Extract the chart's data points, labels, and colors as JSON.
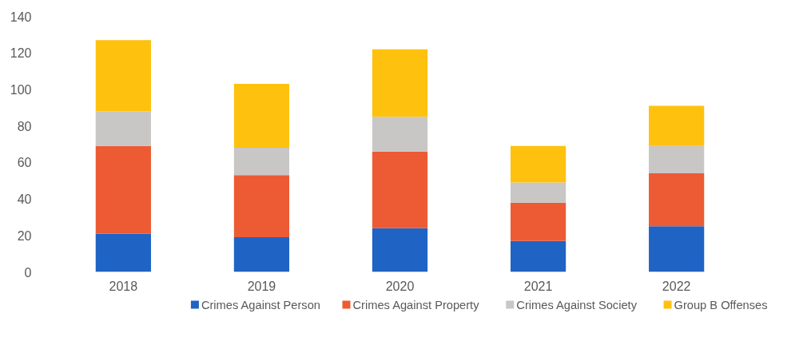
{
  "chart_data": {
    "type": "bar",
    "stacked": true,
    "categories": [
      "2018",
      "2019",
      "2020",
      "2021",
      "2022"
    ],
    "series": [
      {
        "name": "Crimes Against Person",
        "color": "#1f63c4",
        "values": [
          21,
          19,
          24,
          17,
          25
        ]
      },
      {
        "name": "Crimes Against Property",
        "color": "#ec5b33",
        "values": [
          48,
          34,
          42,
          21,
          29
        ]
      },
      {
        "name": "Crimes Against Society",
        "color": "#c9c6c6",
        "values": [
          19,
          15,
          19,
          11,
          15
        ]
      },
      {
        "name": "Group B Offenses",
        "color": "#fec10d",
        "values": [
          39,
          35,
          37,
          20,
          22
        ]
      }
    ],
    "ylim": [
      0,
      140
    ],
    "yticks": [
      0,
      20,
      40,
      60,
      80,
      100,
      120,
      140
    ],
    "grid": false,
    "legend": "bottom"
  }
}
